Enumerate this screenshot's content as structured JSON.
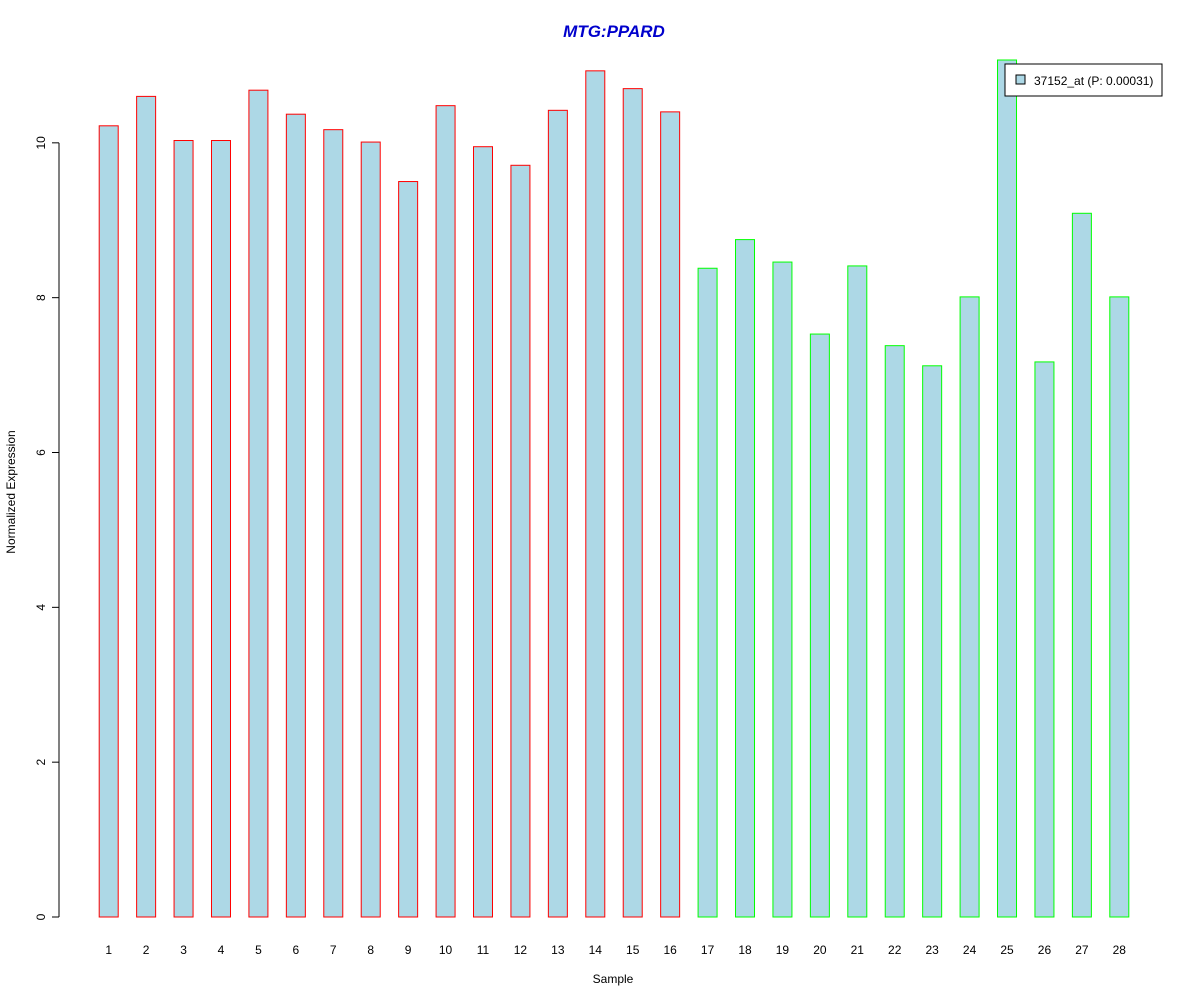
{
  "chart_data": {
    "type": "bar",
    "title": "MTG:PPARD",
    "xlabel": "Sample",
    "ylabel": "Normalized Expression",
    "categories": [
      "1",
      "2",
      "3",
      "4",
      "5",
      "6",
      "7",
      "8",
      "9",
      "10",
      "11",
      "12",
      "13",
      "14",
      "15",
      "16",
      "17",
      "18",
      "19",
      "20",
      "21",
      "22",
      "23",
      "24",
      "25",
      "26",
      "27",
      "28"
    ],
    "series": [
      {
        "name": "37152_at (P: 0.00031)",
        "values": [
          10.22,
          10.6,
          10.03,
          10.03,
          10.68,
          10.37,
          10.17,
          10.01,
          9.5,
          10.48,
          9.95,
          9.71,
          10.42,
          10.93,
          10.7,
          10.4,
          8.38,
          8.75,
          8.46,
          7.53,
          8.41,
          7.38,
          7.12,
          8.01,
          11.07,
          7.17,
          9.09,
          8.01
        ]
      }
    ],
    "yticks": [
      0,
      2,
      4,
      6,
      8,
      10
    ],
    "ylim": [
      0,
      11.07
    ],
    "grid": false,
    "legend_position": "top-right",
    "colors": {
      "bar_fill": "#add8e6",
      "group1_border": "#ff0000",
      "group2_border": "#00ff00",
      "title": "#0000cc"
    },
    "group1_count": 16
  }
}
